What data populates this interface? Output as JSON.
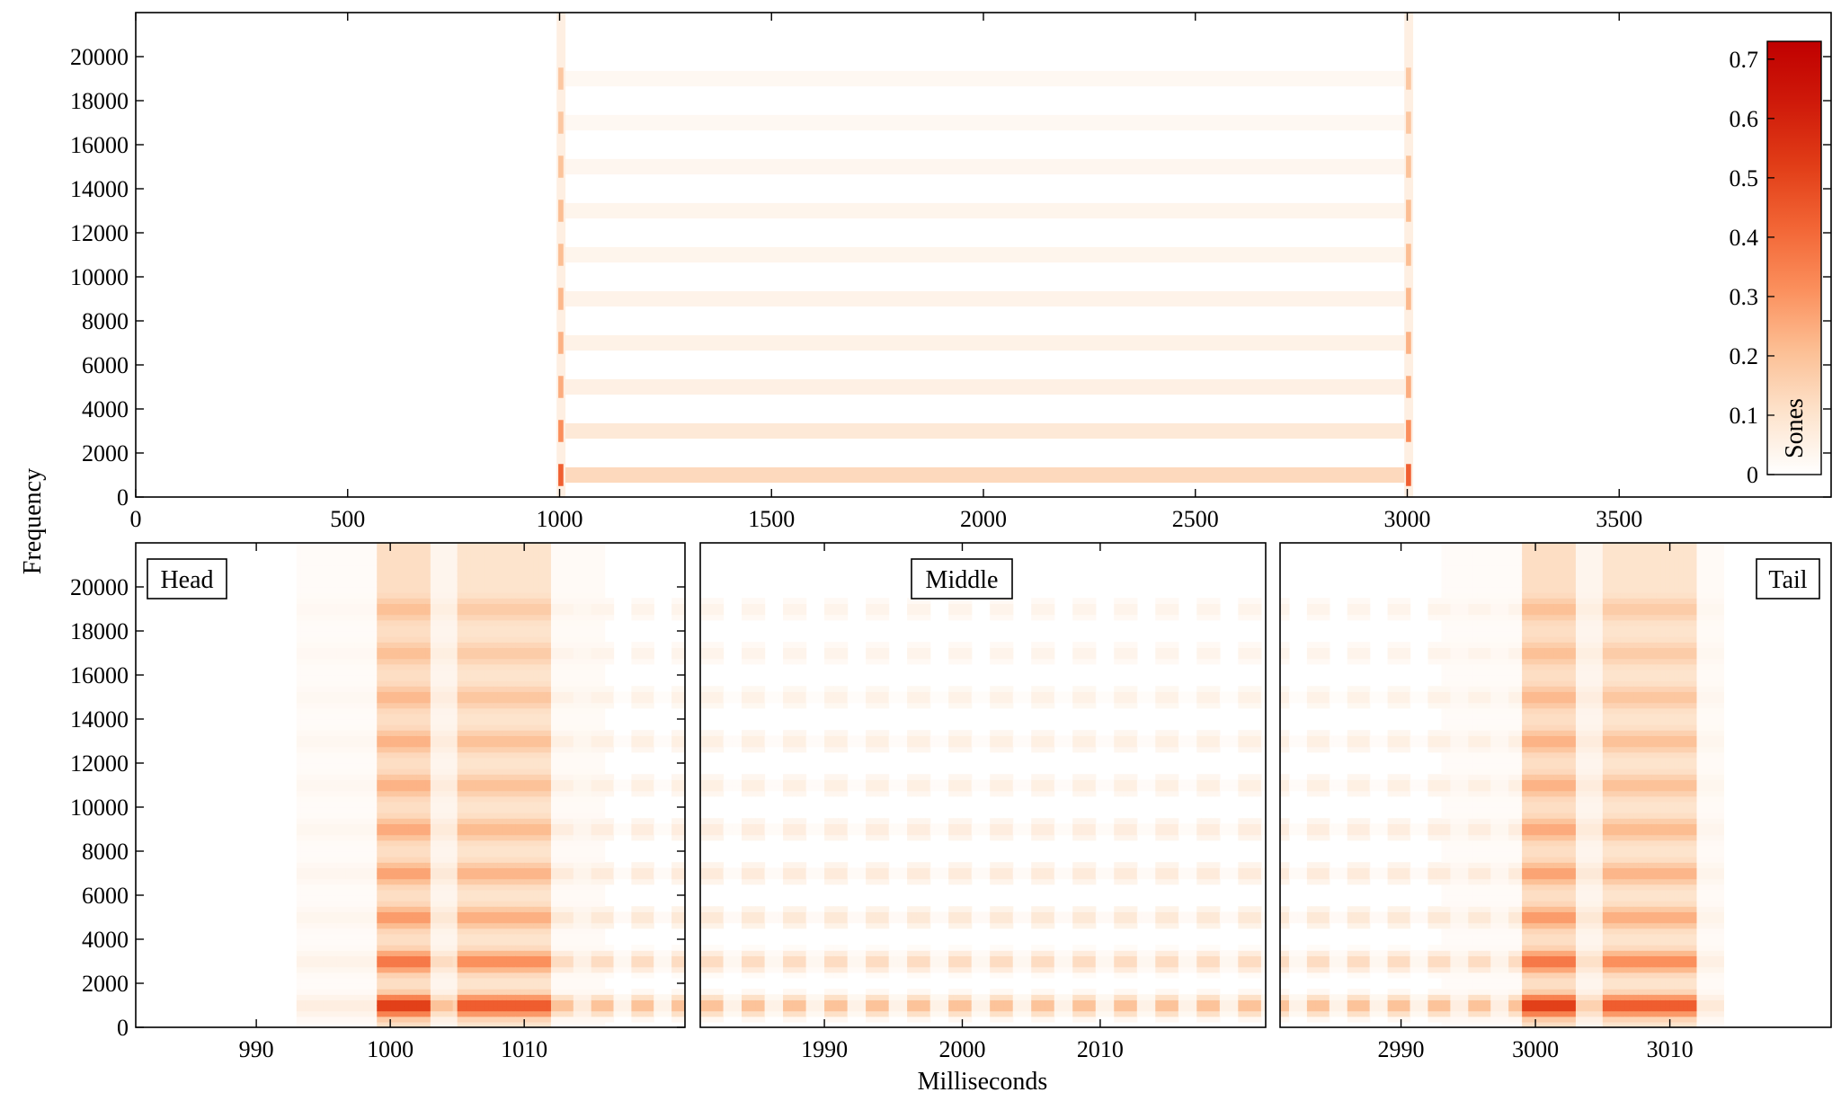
{
  "figure": {
    "ylabel": "Frequency",
    "xlabel": "Milliseconds"
  },
  "chart_data": [
    {
      "type": "heatmap",
      "panel": "overview",
      "xlim": [
        0,
        4000
      ],
      "ylim": [
        0,
        22000
      ],
      "xticks": [
        0,
        500,
        1000,
        1500,
        2000,
        2500,
        3000,
        3500
      ],
      "yticks": [
        0,
        2000,
        4000,
        6000,
        8000,
        10000,
        12000,
        14000,
        16000,
        18000,
        20000
      ],
      "signal": {
        "onset_ms": 1000,
        "offset_ms": 3000,
        "harmonic_frequencies": [
          1000,
          3000,
          5000,
          7000,
          9000,
          11000,
          13000,
          15000,
          17000,
          19000
        ],
        "harmonic_levels": [
          0.24,
          0.15,
          0.1,
          0.09,
          0.08,
          0.07,
          0.07,
          0.06,
          0.05,
          0.05
        ],
        "transient_level": 0.42
      },
      "colorbar": {
        "label": "Sones",
        "range": [
          0,
          0.73
        ],
        "ticks": [
          0,
          0.1,
          0.2,
          0.3,
          0.4,
          0.5,
          0.6,
          0.7
        ],
        "tick_labels": [
          "0",
          "0.1",
          "0.2",
          "0.3",
          "0.4",
          "0.5",
          "0.6",
          "0.7"
        ],
        "colors": [
          "#ffffff",
          "#fde3cc",
          "#fcbf94",
          "#fb8f5c",
          "#f26535",
          "#e13d17",
          "#cf1a0a",
          "#c00000"
        ]
      },
      "grid": false
    },
    {
      "type": "heatmap",
      "panel": "zoom",
      "label": "Head",
      "label_position": "top-left",
      "xlim": [
        981,
        1022
      ],
      "ylim": [
        0,
        22000
      ],
      "xticks": [
        990,
        1000,
        1010
      ],
      "yticks": [
        0,
        2000,
        4000,
        6000,
        8000,
        10000,
        12000,
        14000,
        16000,
        18000,
        20000
      ],
      "grid": false
    },
    {
      "type": "heatmap",
      "panel": "zoom",
      "label": "Middle",
      "label_position": "top-center",
      "xlim": [
        1981,
        2022
      ],
      "ylim": [
        0,
        22000
      ],
      "xticks": [
        1990,
        2000,
        2010
      ],
      "grid": false
    },
    {
      "type": "heatmap",
      "panel": "zoom",
      "label": "Tail",
      "label_position": "top-right",
      "xlim": [
        2981,
        3022
      ],
      "ylim": [
        0,
        22000
      ],
      "xticks": [
        2990,
        3000,
        3010
      ],
      "grid": false
    }
  ]
}
